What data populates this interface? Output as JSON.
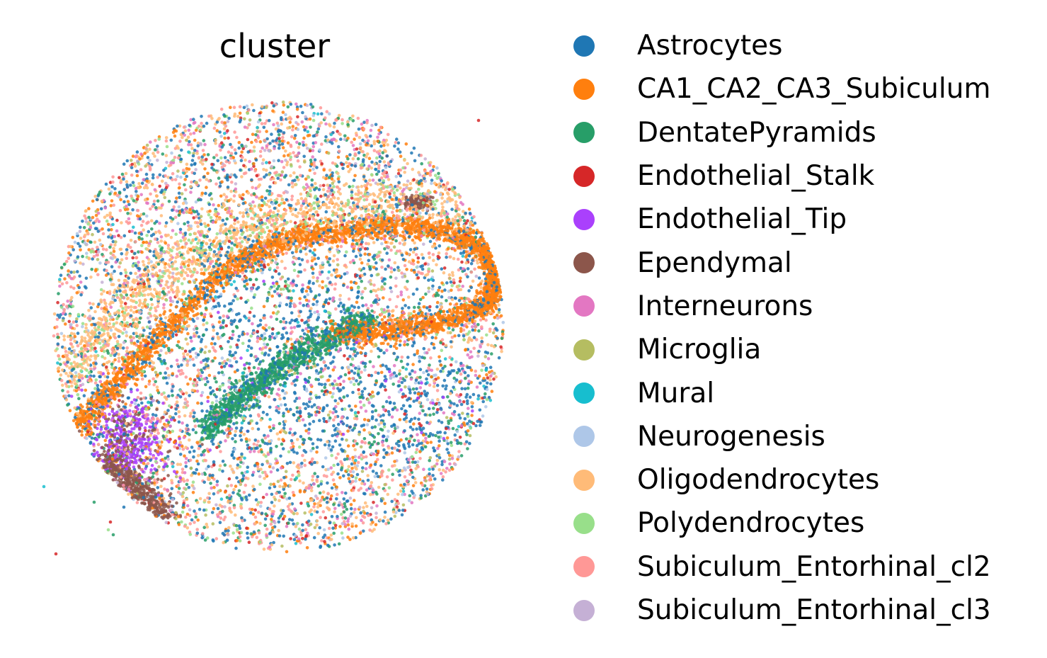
{
  "chart_data": {
    "type": "scatter",
    "title": "cluster",
    "xlabel": "",
    "ylabel": "",
    "axes_visible": false,
    "grid": false,
    "legend_placement": "right",
    "series": [
      {
        "name": "Astrocytes",
        "color": "#1f77b4"
      },
      {
        "name": "CA1_CA2_CA3_Subiculum",
        "color": "#ff7f0e"
      },
      {
        "name": "DentatePyramids",
        "color": "#279e68"
      },
      {
        "name": "Endothelial_Stalk",
        "color": "#d62728"
      },
      {
        "name": "Endothelial_Tip",
        "color": "#aa40fc"
      },
      {
        "name": "Ependymal",
        "color": "#8c564b"
      },
      {
        "name": "Interneurons",
        "color": "#e377c2"
      },
      {
        "name": "Microglia",
        "color": "#b5bd61"
      },
      {
        "name": "Mural",
        "color": "#17becf"
      },
      {
        "name": "Neurogenesis",
        "color": "#aec7e8"
      },
      {
        "name": "Oligodendrocytes",
        "color": "#ffbb78"
      },
      {
        "name": "Polydendrocytes",
        "color": "#98df8a"
      },
      {
        "name": "Subiculum_Entorhinal_cl2",
        "color": "#ff9896"
      },
      {
        "name": "Subiculum_Entorhinal_cl3",
        "color": "#c5b0d5"
      }
    ]
  }
}
